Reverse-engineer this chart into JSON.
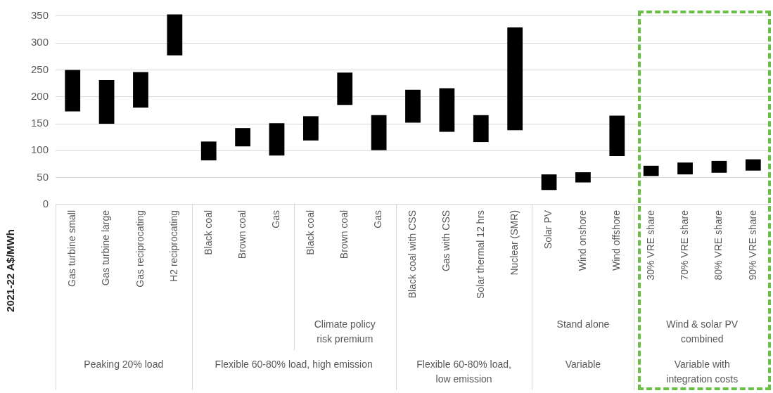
{
  "chart_data": {
    "type": "bar",
    "ylabel": "2021-22 A$/MWh",
    "categories": [
      "Gas turbine small",
      "Gas turbine large",
      "Gas reciprocating",
      "H2 reciprocating",
      "Black coal",
      "Brown coal",
      "Gas",
      "Black coal",
      "Brown coal",
      "Gas",
      "Black coal with CSS",
      "Gas with CSS",
      "Solar thermal 12 hrs",
      "Nuclear (SMR)",
      "Solar PV",
      "Wind onshore",
      "Wind offshore",
      "30% VRE share",
      "70% VRE share",
      "80% VRE share",
      "90% VRE share"
    ],
    "base": [
      173,
      150,
      180,
      277,
      82,
      108,
      91,
      119,
      185,
      101,
      152,
      135,
      116,
      138,
      27,
      41,
      90,
      53,
      56,
      59,
      63
    ],
    "values": [
      77,
      81,
      66,
      76,
      35,
      34,
      60,
      45,
      60,
      65,
      61,
      81,
      50,
      191,
      29,
      19,
      75,
      19,
      22,
      22,
      21
    ],
    "color": "#000000",
    "ylim": [
      0,
      355
    ],
    "yticks": [
      0,
      50,
      100,
      150,
      200,
      250,
      300,
      350
    ],
    "grid": "y",
    "annotations": [
      "Climate policy risk premium",
      "Stand alone",
      "Wind & solar PV combined",
      "Peaking 20% load",
      "Flexible 60-80% load, high emission",
      "Flexible 60-80% load, low emission",
      "Variable",
      "Variable with integration costs"
    ]
  }
}
